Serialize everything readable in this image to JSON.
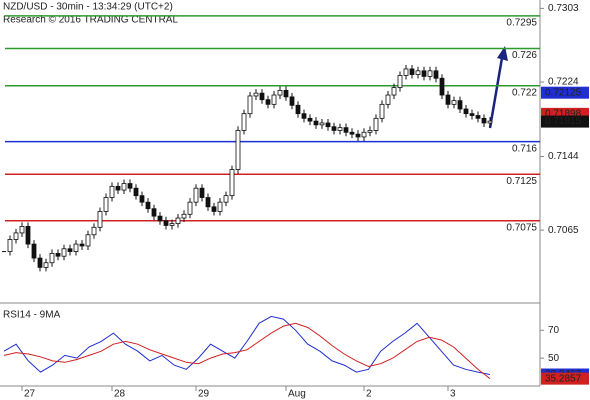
{
  "chart_data": {
    "type": "candlestick",
    "title": "NZD/USD - 30min - 13:34:29 (UTC+2)",
    "subtitle": "Research © 2016 TRADING CENTRAL",
    "categories": [
      null,
      null,
      null,
      "27",
      null,
      null,
      null,
      null,
      null,
      null,
      null,
      null,
      null,
      null,
      null,
      null,
      null,
      null,
      "28",
      null,
      null,
      null,
      null,
      null,
      null,
      null,
      null,
      null,
      null,
      null,
      null,
      null,
      "29",
      null,
      null,
      null,
      null,
      null,
      null,
      null,
      null,
      null,
      null,
      null,
      null,
      null,
      null,
      "Aug",
      null,
      null,
      null,
      null,
      null,
      null,
      null,
      null,
      null,
      null,
      null,
      null,
      "2",
      null,
      null,
      null,
      null,
      null,
      null,
      null,
      null,
      null,
      null,
      null,
      null,
      null,
      "3",
      null,
      null,
      null,
      null,
      null,
      null,
      null
    ],
    "values": [
      0.7042,
      0.7055,
      0.7062,
      0.7069,
      0.705,
      0.7035,
      0.7025,
      0.703,
      0.704,
      0.7037,
      0.7045,
      0.7042,
      0.705,
      0.7048,
      0.706,
      0.7068,
      0.7085,
      0.71,
      0.7112,
      0.7108,
      0.7115,
      0.711,
      0.7102,
      0.7095,
      0.7088,
      0.708,
      0.7075,
      0.707,
      0.7072,
      0.7078,
      0.7082,
      0.7095,
      0.711,
      0.71,
      0.709,
      0.7085,
      0.7095,
      0.7102,
      0.713,
      0.7172,
      0.719,
      0.7209,
      0.7212,
      0.7205,
      0.72,
      0.721,
      0.7215,
      0.7208,
      0.7199,
      0.719,
      0.7185,
      0.7182,
      0.7178,
      0.718,
      0.7176,
      0.7172,
      0.7175,
      0.717,
      0.7168,
      0.7165,
      0.717,
      0.7172,
      0.7185,
      0.72,
      0.721,
      0.7218,
      0.7231,
      0.7238,
      0.7232,
      0.7236,
      0.723,
      0.7236,
      0.7228,
      0.721,
      0.72,
      0.7204,
      0.7195,
      0.719,
      0.7188,
      0.7185,
      0.718,
      0.7182
    ],
    "color": "#111111",
    "ylim": [
      0.699,
      0.7312
    ],
    "yticks": [
      0.7303,
      0.7224,
      0.7144,
      0.7065
    ],
    "levels": [
      {
        "value": 0.7295,
        "color": "#2e9a2e"
      },
      {
        "value": 0.726,
        "color": "#2e9a2e"
      },
      {
        "value": 0.722,
        "color": "#2e9a2e"
      },
      {
        "value": 0.716,
        "color": "#1f2fd0"
      },
      {
        "value": 0.7125,
        "color": "#d02020"
      },
      {
        "value": 0.7075,
        "color": "#d02020"
      }
    ],
    "last_values": [
      {
        "value": 0.72125,
        "color": "#1f2fd0"
      },
      {
        "value": 0.71898,
        "color": "#d02020"
      },
      {
        "value": 0.71815,
        "color": "#111111"
      }
    ],
    "rsi": {
      "label": "RSI14 - 9MA",
      "ylim": [
        30,
        86
      ],
      "yticks": [
        50,
        70
      ],
      "series": [
        {
          "color": "#1f2fd0",
          "values": [
            55,
            60,
            48,
            40,
            45,
            52,
            50,
            58,
            62,
            68,
            60,
            55,
            48,
            52,
            45,
            42,
            50,
            60,
            55,
            50,
            62,
            75,
            80,
            78,
            70,
            60,
            55,
            48,
            45,
            40,
            42,
            55,
            62,
            68,
            75,
            65,
            55,
            45,
            42,
            40,
            38.2467
          ]
        },
        {
          "color": "#d02020",
          "values": [
            52,
            54,
            53,
            51,
            48,
            47,
            49,
            52,
            55,
            60,
            62,
            60,
            56,
            53,
            50,
            47,
            46,
            50,
            53,
            54,
            56,
            62,
            68,
            73,
            75,
            72,
            66,
            59,
            53,
            48,
            44,
            46,
            50,
            56,
            62,
            65,
            63,
            58,
            50,
            42,
            35.2857
          ]
        }
      ],
      "last_values": [
        {
          "value": 38.2467,
          "color": "#1f2fd0"
        },
        {
          "value": 35.2857,
          "color": "#d02020"
        }
      ]
    }
  }
}
